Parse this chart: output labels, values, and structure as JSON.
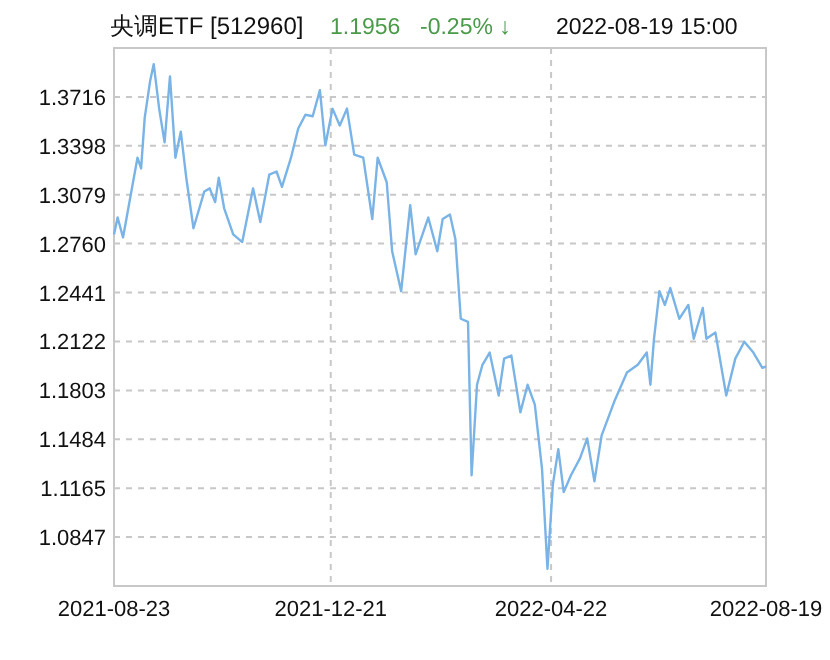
{
  "chart_data": {
    "type": "line",
    "title": "央调ETF [512960]",
    "annotations": [
      "1.1956",
      "-0.25% ↓",
      "2022-08-19 15:00"
    ],
    "x": [
      "2021-08-23",
      "2021-08-25",
      "2021-08-28",
      "2021-09-01",
      "2021-09-05",
      "2021-09-07",
      "2021-09-09",
      "2021-09-12",
      "2021-09-14",
      "2021-09-17",
      "2021-09-20",
      "2021-09-23",
      "2021-09-26",
      "2021-09-29",
      "2021-10-02",
      "2021-10-06",
      "2021-10-12",
      "2021-10-15",
      "2021-10-18",
      "2021-10-20",
      "2021-10-23",
      "2021-10-28",
      "2021-11-02",
      "2021-11-08",
      "2021-11-12",
      "2021-11-17",
      "2021-11-21",
      "2021-11-24",
      "2021-11-29",
      "2021-12-03",
      "2021-12-07",
      "2021-12-11",
      "2021-12-15",
      "2021-12-18",
      "2021-12-22",
      "2021-12-26",
      "2021-12-30",
      "2022-01-03",
      "2022-01-08",
      "2022-01-13",
      "2022-01-16",
      "2022-01-21",
      "2022-01-24",
      "2022-01-29",
      "2022-02-03",
      "2022-02-06",
      "2022-02-13",
      "2022-02-18",
      "2022-02-21",
      "2022-02-25",
      "2022-02-28",
      "2022-03-03",
      "2022-03-07",
      "2022-03-09",
      "2022-03-12",
      "2022-03-15",
      "2022-03-19",
      "2022-03-24",
      "2022-03-27",
      "2022-03-31",
      "2022-04-05",
      "2022-04-09",
      "2022-04-13",
      "2022-04-17",
      "2022-04-20",
      "2022-04-23",
      "2022-04-26",
      "2022-04-29",
      "2022-05-03",
      "2022-05-08",
      "2022-05-12",
      "2022-05-16",
      "2022-05-20",
      "2022-05-27",
      "2022-06-03",
      "2022-06-09",
      "2022-06-14",
      "2022-06-16",
      "2022-06-18",
      "2022-06-21",
      "2022-06-24",
      "2022-06-27",
      "2022-07-02",
      "2022-07-07",
      "2022-07-10",
      "2022-07-15",
      "2022-07-17",
      "2022-07-22",
      "2022-07-28",
      "2022-08-02",
      "2022-08-07",
      "2022-08-12",
      "2022-08-17",
      "2022-08-19"
    ],
    "series": [
      {
        "color": "#7ab4e6",
        "values": [
          1.282,
          1.293,
          1.28,
          1.306,
          1.332,
          1.325,
          1.358,
          1.382,
          1.393,
          1.364,
          1.342,
          1.385,
          1.332,
          1.349,
          1.319,
          1.286,
          1.31,
          1.312,
          1.303,
          1.319,
          1.299,
          1.282,
          1.277,
          1.312,
          1.29,
          1.321,
          1.323,
          1.313,
          1.332,
          1.351,
          1.36,
          1.359,
          1.376,
          1.34,
          1.364,
          1.353,
          1.364,
          1.334,
          1.332,
          1.292,
          1.332,
          1.316,
          1.271,
          1.245,
          1.301,
          1.269,
          1.293,
          1.271,
          1.292,
          1.295,
          1.279,
          1.227,
          1.225,
          1.125,
          1.184,
          1.197,
          1.205,
          1.177,
          1.201,
          1.203,
          1.166,
          1.184,
          1.171,
          1.129,
          1.064,
          1.119,
          1.142,
          1.114,
          1.125,
          1.136,
          1.149,
          1.121,
          1.151,
          1.173,
          1.192,
          1.197,
          1.205,
          1.184,
          1.214,
          1.245,
          1.236,
          1.247,
          1.227,
          1.236,
          1.214,
          1.234,
          1.214,
          1.218,
          1.177,
          1.201,
          1.212,
          1.205,
          1.195,
          1.196
        ]
      }
    ],
    "xlim": [
      "2021-08-23",
      "2022-08-19"
    ],
    "xticks": [
      "2021-08-23",
      "2021-12-21",
      "2022-04-22",
      "2022-08-19"
    ],
    "ylim": [
      1.0528,
      1.4035
    ],
    "yticks": [
      1.0847,
      1.1165,
      1.1484,
      1.1803,
      1.2122,
      1.2441,
      {
        "value": 1.276,
        "label": "1.2760"
      },
      1.3079,
      1.3398,
      1.3716
    ],
    "grid": true
  }
}
